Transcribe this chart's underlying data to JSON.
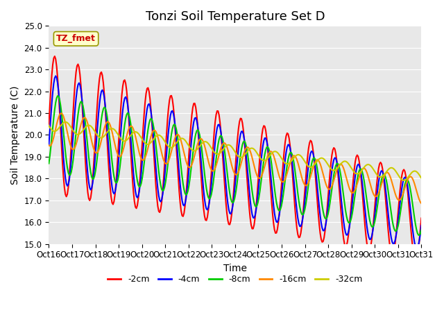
{
  "title": "Tonzi Soil Temperature Set D",
  "xlabel": "Time",
  "ylabel": "Soil Temperature (C)",
  "ylim": [
    15.0,
    25.0
  ],
  "yticks": [
    15.0,
    16.0,
    17.0,
    18.0,
    19.0,
    20.0,
    21.0,
    22.0,
    23.0,
    24.0,
    25.0
  ],
  "xtick_labels": [
    "Oct 16",
    "Oct 17",
    "Oct 18",
    "Oct 19",
    "Oct 20",
    "Oct 21",
    "Oct 22",
    "Oct 23",
    "Oct 24",
    "Oct 25",
    "Oct 26",
    "Oct 27",
    "Oct 28",
    "Oct 29",
    "Oct 30",
    "Oct 31"
  ],
  "legend_labels": [
    "-2cm",
    "-4cm",
    "-8cm",
    "-16cm",
    "-32cm"
  ],
  "colors": [
    "#ff0000",
    "#0000ff",
    "#00cc00",
    "#ff8800",
    "#cccc00"
  ],
  "annotation_text": "TZ_fmet",
  "annotation_color": "#cc0000",
  "annotation_bg": "#ffffcc",
  "background_color": "#e8e8e8",
  "n_points": 384,
  "title_fontsize": 13,
  "axis_label_fontsize": 10,
  "tick_fontsize": 8.5
}
